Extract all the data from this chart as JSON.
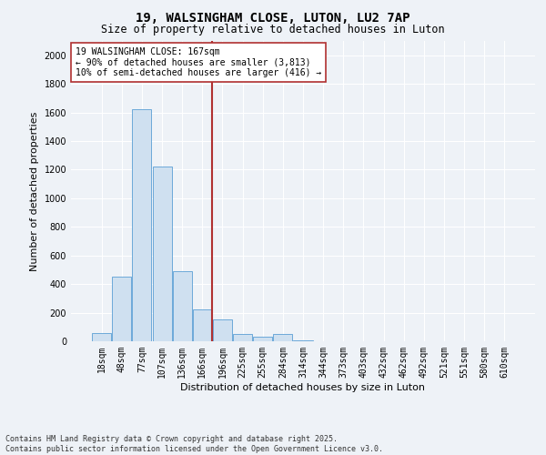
{
  "title_line1": "19, WALSINGHAM CLOSE, LUTON, LU2 7AP",
  "title_line2": "Size of property relative to detached houses in Luton",
  "xlabel": "Distribution of detached houses by size in Luton",
  "ylabel": "Number of detached properties",
  "bar_labels": [
    "18sqm",
    "48sqm",
    "77sqm",
    "107sqm",
    "136sqm",
    "166sqm",
    "196sqm",
    "225sqm",
    "255sqm",
    "284sqm",
    "314sqm",
    "344sqm",
    "373sqm",
    "403sqm",
    "432sqm",
    "462sqm",
    "492sqm",
    "521sqm",
    "551sqm",
    "580sqm",
    "610sqm"
  ],
  "bar_values": [
    55,
    450,
    1620,
    1220,
    490,
    220,
    155,
    50,
    35,
    50,
    5,
    0,
    0,
    0,
    0,
    0,
    0,
    0,
    0,
    0,
    0
  ],
  "bar_color": "#cfe0f0",
  "bar_edge_color": "#5a9fd4",
  "vline_color": "#b03030",
  "vline_x_index": 5.5,
  "annotation_text": "19 WALSINGHAM CLOSE: 167sqm\n← 90% of detached houses are smaller (3,813)\n10% of semi-detached houses are larger (416) →",
  "annotation_box_color": "white",
  "annotation_box_edge_color": "#b03030",
  "ylim": [
    0,
    2100
  ],
  "yticks": [
    0,
    200,
    400,
    600,
    800,
    1000,
    1200,
    1400,
    1600,
    1800,
    2000
  ],
  "footer_line1": "Contains HM Land Registry data © Crown copyright and database right 2025.",
  "footer_line2": "Contains public sector information licensed under the Open Government Licence v3.0.",
  "bg_color": "#eef2f7",
  "grid_color": "#ffffff",
  "title_fontsize": 10,
  "subtitle_fontsize": 8.5,
  "axis_label_fontsize": 8,
  "tick_fontsize": 7,
  "annotation_fontsize": 7,
  "footer_fontsize": 6
}
